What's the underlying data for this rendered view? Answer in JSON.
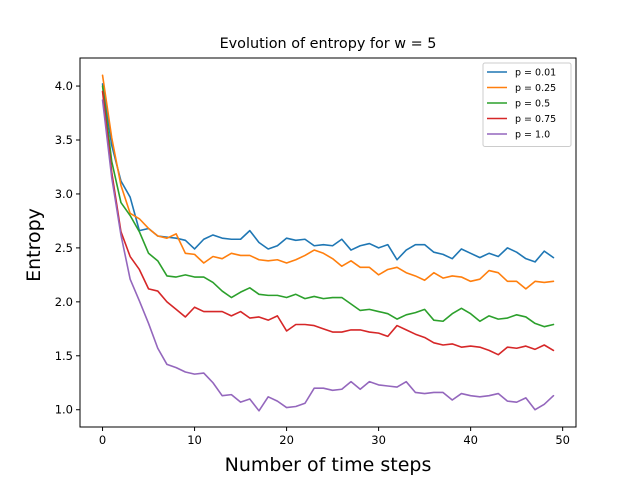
{
  "chart_data": {
    "type": "line",
    "title": "Evolution of entropy for w = 5",
    "xlabel": "Number of time steps",
    "ylabel": "Entropy",
    "xlim": [
      -2.45,
      51.45
    ],
    "ylim": [
      0.84,
      4.26
    ],
    "xticks": [
      0,
      10,
      20,
      30,
      40,
      50
    ],
    "xtick_labels": [
      "0",
      "10",
      "20",
      "30",
      "40",
      "50"
    ],
    "yticks": [
      1.0,
      1.5,
      2.0,
      2.5,
      3.0,
      3.5,
      4.0
    ],
    "ytick_labels": [
      "1.0",
      "1.5",
      "2.0",
      "2.5",
      "3.0",
      "3.5",
      "4.0"
    ],
    "grid": false,
    "legend_position": "top-right",
    "x": [
      0,
      1,
      2,
      3,
      4,
      5,
      6,
      7,
      8,
      9,
      10,
      11,
      12,
      13,
      14,
      15,
      16,
      17,
      18,
      19,
      20,
      21,
      22,
      23,
      24,
      25,
      26,
      27,
      28,
      29,
      30,
      31,
      32,
      33,
      34,
      35,
      36,
      37,
      38,
      39,
      40,
      41,
      42,
      43,
      44,
      45,
      46,
      47,
      48,
      49
    ],
    "series": [
      {
        "name": "p = 0.01",
        "color": "#1f77b4",
        "values": [
          4.02,
          3.45,
          3.12,
          2.97,
          2.66,
          2.68,
          2.61,
          2.6,
          2.59,
          2.57,
          2.49,
          2.58,
          2.62,
          2.59,
          2.58,
          2.58,
          2.66,
          2.55,
          2.49,
          2.52,
          2.59,
          2.57,
          2.58,
          2.52,
          2.53,
          2.52,
          2.58,
          2.48,
          2.52,
          2.54,
          2.5,
          2.53,
          2.39,
          2.48,
          2.53,
          2.53,
          2.46,
          2.44,
          2.4,
          2.49,
          2.45,
          2.41,
          2.45,
          2.42,
          2.5,
          2.46,
          2.4,
          2.37,
          2.47,
          2.41
        ]
      },
      {
        "name": "p = 0.25",
        "color": "#ff7f0e",
        "values": [
          4.1,
          3.52,
          3.08,
          2.82,
          2.77,
          2.68,
          2.61,
          2.59,
          2.63,
          2.45,
          2.44,
          2.36,
          2.42,
          2.4,
          2.45,
          2.43,
          2.43,
          2.39,
          2.38,
          2.39,
          2.36,
          2.39,
          2.43,
          2.48,
          2.45,
          2.4,
          2.33,
          2.38,
          2.32,
          2.32,
          2.25,
          2.3,
          2.32,
          2.27,
          2.24,
          2.2,
          2.27,
          2.22,
          2.24,
          2.23,
          2.19,
          2.21,
          2.29,
          2.27,
          2.19,
          2.19,
          2.12,
          2.19,
          2.18,
          2.19
        ]
      },
      {
        "name": "p = 0.5",
        "color": "#2ca02c",
        "values": [
          4.0,
          3.3,
          2.92,
          2.8,
          2.65,
          2.45,
          2.38,
          2.24,
          2.23,
          2.25,
          2.23,
          2.23,
          2.18,
          2.1,
          2.04,
          2.09,
          2.13,
          2.07,
          2.06,
          2.06,
          2.04,
          2.07,
          2.03,
          2.05,
          2.03,
          2.04,
          2.04,
          1.98,
          1.92,
          1.93,
          1.91,
          1.89,
          1.84,
          1.88,
          1.9,
          1.93,
          1.83,
          1.82,
          1.89,
          1.94,
          1.89,
          1.82,
          1.87,
          1.84,
          1.85,
          1.88,
          1.86,
          1.8,
          1.77,
          1.79
        ]
      },
      {
        "name": "p = 0.75",
        "color": "#d62728",
        "values": [
          3.95,
          3.2,
          2.65,
          2.42,
          2.3,
          2.12,
          2.1,
          2.0,
          1.93,
          1.86,
          1.95,
          1.91,
          1.91,
          1.91,
          1.87,
          1.91,
          1.85,
          1.86,
          1.83,
          1.87,
          1.73,
          1.79,
          1.79,
          1.78,
          1.75,
          1.72,
          1.72,
          1.74,
          1.74,
          1.72,
          1.71,
          1.68,
          1.78,
          1.74,
          1.7,
          1.67,
          1.62,
          1.6,
          1.61,
          1.58,
          1.59,
          1.58,
          1.55,
          1.51,
          1.58,
          1.57,
          1.59,
          1.56,
          1.6,
          1.55
        ]
      },
      {
        "name": "p = 1.0",
        "color": "#9467bd",
        "values": [
          3.87,
          3.15,
          2.62,
          2.21,
          2.01,
          1.8,
          1.57,
          1.42,
          1.39,
          1.35,
          1.33,
          1.34,
          1.25,
          1.13,
          1.14,
          1.07,
          1.1,
          0.99,
          1.12,
          1.08,
          1.02,
          1.03,
          1.06,
          1.2,
          1.2,
          1.18,
          1.19,
          1.26,
          1.19,
          1.26,
          1.23,
          1.22,
          1.21,
          1.26,
          1.16,
          1.15,
          1.16,
          1.16,
          1.09,
          1.15,
          1.13,
          1.12,
          1.13,
          1.15,
          1.08,
          1.07,
          1.11,
          1.0,
          1.05,
          1.13
        ]
      }
    ]
  }
}
